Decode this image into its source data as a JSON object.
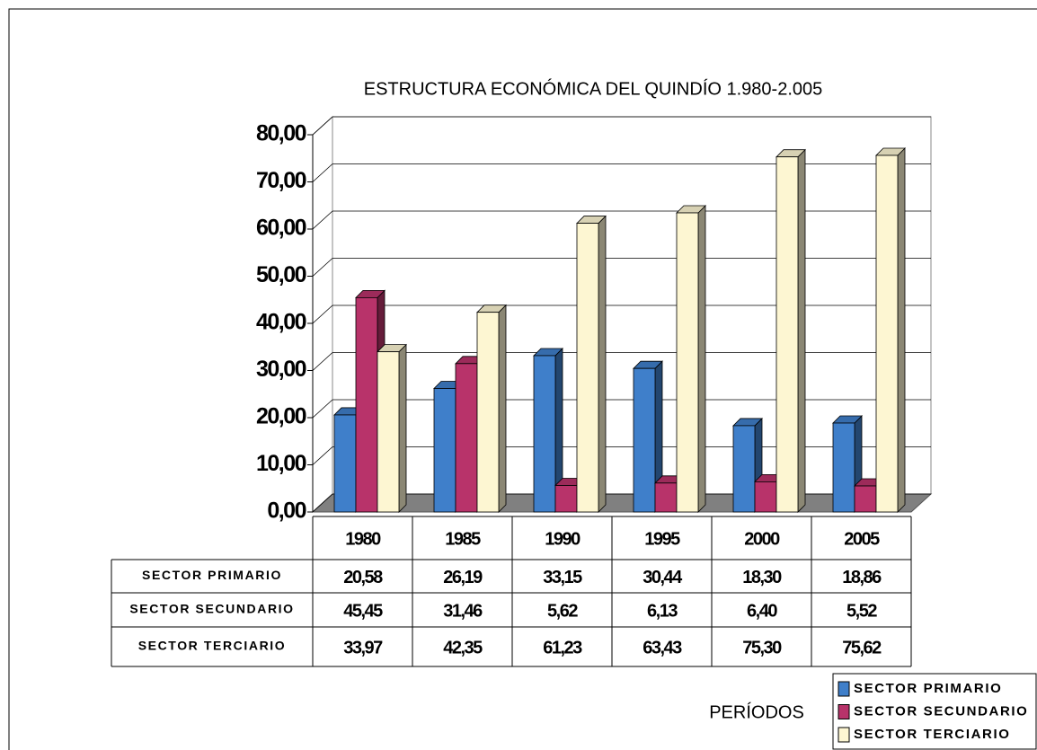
{
  "chart_data": {
    "type": "bar",
    "title": "ESTRUCTURA ECONÓMICA DEL QUINDÍO 1.980-2.005",
    "x_label": "PERÍODOS",
    "categories": [
      "1980",
      "1985",
      "1990",
      "1995",
      "2000",
      "2005"
    ],
    "series": [
      {
        "name": "SECTOR PRIMARIO",
        "color": "#3f7fca",
        "values": [
          20.58,
          26.19,
          33.15,
          30.44,
          18.3,
          18.86
        ],
        "value_labels": [
          "20,58",
          "26,19",
          "33,15",
          "30,44",
          "18,30",
          "18,86"
        ]
      },
      {
        "name": "SECTOR SECUNDARIO",
        "color": "#b8336a",
        "values": [
          45.45,
          31.46,
          5.62,
          6.13,
          6.4,
          5.52
        ],
        "value_labels": [
          "45,45",
          "31,46",
          "5,62",
          "6,13",
          "6,40",
          "5,52"
        ]
      },
      {
        "name": "SECTOR TERCIARIO",
        "color": "#fdf6d2",
        "values": [
          33.97,
          42.35,
          61.23,
          63.43,
          75.3,
          75.62
        ],
        "value_labels": [
          "33,97",
          "42,35",
          "61,23",
          "63,43",
          "75,30",
          "75,62"
        ]
      }
    ],
    "ylim": [
      0,
      80
    ],
    "yticks": [
      {
        "value": 0,
        "label": "0,00"
      },
      {
        "value": 10,
        "label": "10,00"
      },
      {
        "value": 20,
        "label": "20,00"
      },
      {
        "value": 30,
        "label": "30,00"
      },
      {
        "value": 40,
        "label": "40,00"
      },
      {
        "value": 50,
        "label": "50,00"
      },
      {
        "value": 60,
        "label": "60,00"
      },
      {
        "value": 70,
        "label": "70,00"
      },
      {
        "value": 80,
        "label": "80,00"
      }
    ],
    "grid": true
  }
}
